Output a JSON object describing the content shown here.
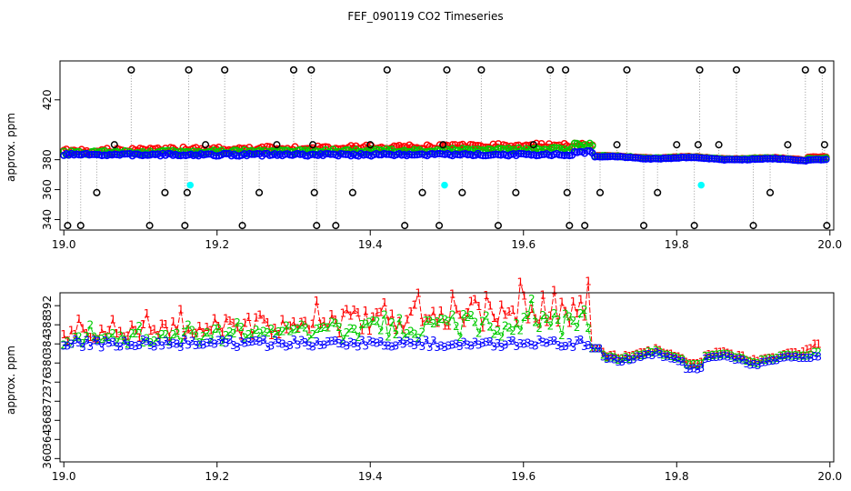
{
  "title": "FEF_090119  CO2 Timeseries",
  "colors": {
    "c0": "#000000",
    "c1": "#ff0000",
    "c2": "#00cc00",
    "c3": "#0000ff",
    "cyan": "#00ffff",
    "drop": "#999999"
  },
  "chart_data": [
    {
      "type": "scatter",
      "title": "",
      "ylabel": "approx. ppm",
      "xlim": [
        18.995,
        20.005
      ],
      "ylim": [
        333,
        446
      ],
      "xticks": [
        19.0,
        19.2,
        19.4,
        19.6,
        19.8,
        20.0
      ],
      "xtick_labels": [
        "19.0",
        "19.2",
        "19.4",
        "19.6",
        "19.8",
        "20.0"
      ],
      "yticks": [
        340,
        360,
        380,
        420
      ],
      "ytick_labels": [
        "340",
        "360",
        "380",
        "420"
      ],
      "series": [
        {
          "name": "0",
          "color": "c0",
          "drop_to": 336,
          "x": [
            19.005,
            19.022,
            19.043,
            19.066,
            19.088,
            19.112,
            19.132,
            19.158,
            19.161,
            19.163,
            19.185,
            19.21,
            19.233,
            19.255,
            19.278,
            19.3,
            19.323,
            19.325,
            19.327,
            19.33,
            19.355,
            19.377,
            19.4,
            19.422,
            19.445,
            19.468,
            19.49,
            19.495,
            19.5,
            19.52,
            19.545,
            19.567,
            19.59,
            19.613,
            19.635,
            19.655,
            19.657,
            19.66,
            19.68,
            19.7,
            19.722,
            19.735,
            19.757,
            19.775,
            19.8,
            19.823,
            19.828,
            19.83,
            19.855,
            19.878,
            19.9,
            19.922,
            19.945,
            19.968,
            19.99,
            19.993,
            19.996
          ],
          "y": [
            336,
            336,
            358,
            390,
            440,
            336,
            358,
            336,
            358,
            440,
            390,
            440,
            336,
            358,
            390,
            440,
            440,
            390,
            358,
            336,
            336,
            358,
            390,
            440,
            336,
            358,
            336,
            390,
            440,
            358,
            440,
            336,
            358,
            390,
            440,
            440,
            358,
            336,
            336,
            358,
            390,
            440,
            336,
            358,
            390,
            336,
            390,
            440,
            390,
            440,
            336,
            358,
            390,
            440,
            440,
            390,
            336
          ]
        },
        {
          "name": "1",
          "color": "c1",
          "x": [],
          "y": []
        },
        {
          "name": "2",
          "color": "c2",
          "x": [],
          "y": []
        },
        {
          "name": "3",
          "color": "c3",
          "x": [],
          "y": []
        },
        {
          "name": "cyan",
          "color": "cyan",
          "x": [
            19.165,
            19.497,
            19.832
          ],
          "y": [
            363,
            363,
            363
          ]
        }
      ],
      "gaps": [
        19.0,
        19.168,
        19.334,
        19.5,
        19.668,
        19.835
      ]
    },
    {
      "type": "line",
      "title": "",
      "ylabel": "approx. ppm",
      "xlim": [
        18.995,
        20.005
      ],
      "ylim": [
        359.3,
        394.7
      ],
      "xticks": [
        19.0,
        19.2,
        19.4,
        19.6,
        19.8,
        20.0
      ],
      "xtick_labels": [
        "19.0",
        "19.2",
        "19.4",
        "19.6",
        "19.8",
        "20.0"
      ],
      "yticks": [
        360,
        364,
        368,
        372,
        376,
        380,
        384,
        388,
        392
      ],
      "ytick_labels": [
        "360",
        "364",
        "368",
        "372",
        "376",
        "380",
        "384",
        "388",
        "392"
      ],
      "series": [
        {
          "name": "1",
          "marker": "1",
          "color": "c1",
          "x": [],
          "y": []
        },
        {
          "name": "2",
          "marker": "2",
          "color": "c2",
          "x": [],
          "y": []
        },
        {
          "name": "3",
          "marker": "3",
          "color": "c3",
          "x": [],
          "y": []
        }
      ]
    }
  ]
}
